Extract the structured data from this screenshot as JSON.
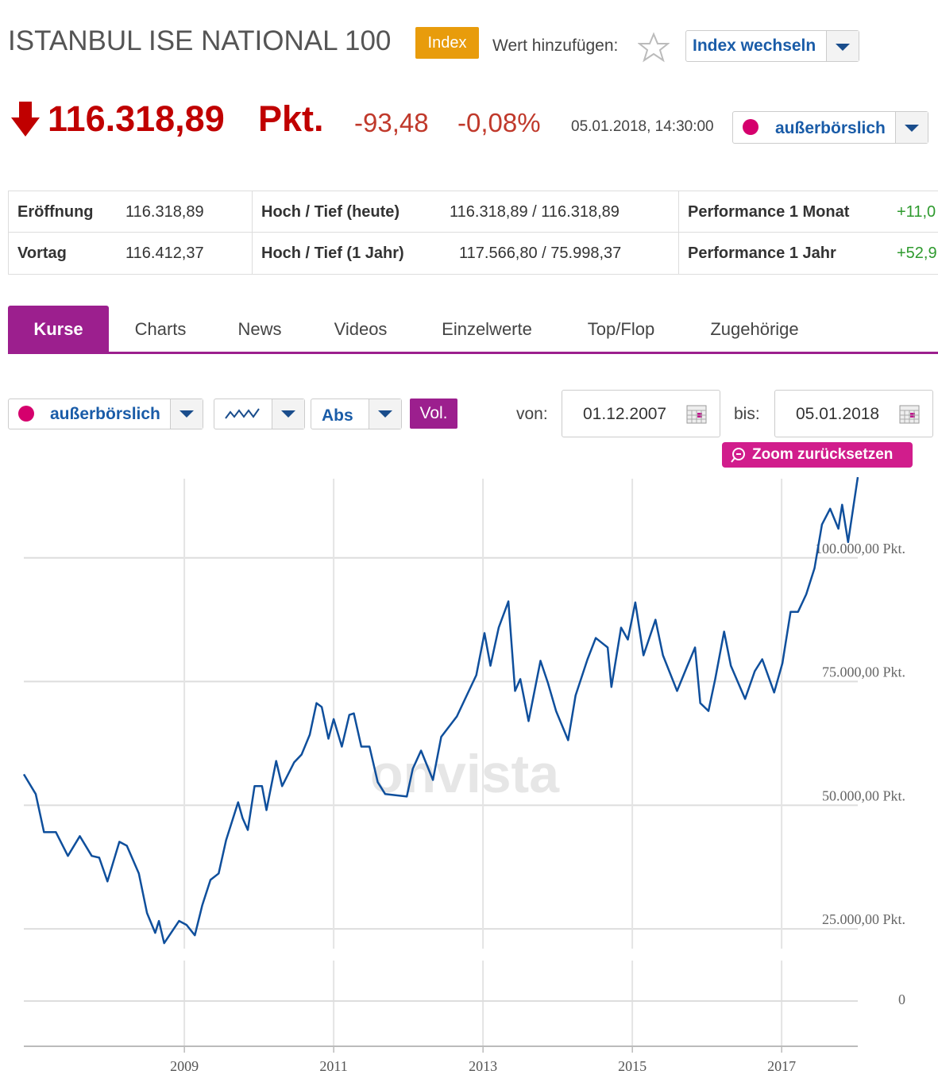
{
  "header": {
    "title": "ISTANBUL ISE NATIONAL 100",
    "badge": "Index",
    "add_label": "Wert hinzufügen:",
    "switch_button": "Index wechseln"
  },
  "quote": {
    "price": "116.318,89",
    "unit": "Pkt.",
    "change": "-93,48",
    "change_pct": "-0,08%",
    "timestamp": "05.01.2018, 14:30:00",
    "exchange": "außerbörslich"
  },
  "stats": {
    "rows": [
      [
        "Eröffnung",
        "116.318,89",
        "Hoch / Tief (heute)",
        "116.318,89 / 116.318,89",
        "Performance 1 Monat",
        "+11,0"
      ],
      [
        "Vortag",
        "116.412,37",
        "Hoch / Tief (1 Jahr)",
        "117.566,80 / 75.998,37",
        "Performance 1 Jahr",
        "+52,9"
      ]
    ]
  },
  "tabs": [
    "Kurse",
    "Charts",
    "News",
    "Videos",
    "Einzelwerte",
    "Top/Flop",
    "Zugehörige"
  ],
  "controls": {
    "exchange": "außerbörslich",
    "mode": "Abs",
    "volume": "Vol.",
    "from_label": "von:",
    "from": "01.12.2007",
    "to_label": "bis:",
    "to": "05.01.2018",
    "zoom_reset": "Zoom zurücksetzen"
  },
  "chart_data": {
    "type": "line",
    "watermark": "onvista",
    "color": "#0f4f9c",
    "grid": true,
    "x": [
      2006.85,
      2007.01,
      2007.12,
      2007.28,
      2007.44,
      2007.6,
      2007.76,
      2007.86,
      2007.97,
      2008.13,
      2008.23,
      2008.39,
      2008.5,
      2008.61,
      2008.66,
      2008.73,
      2008.93,
      2009.03,
      2009.14,
      2009.24,
      2009.35,
      2009.46,
      2009.56,
      2009.72,
      2009.78,
      2009.85,
      2009.94,
      2010.04,
      2010.1,
      2010.23,
      2010.31,
      2010.47,
      2010.57,
      2010.68,
      2010.77,
      2010.84,
      2010.93,
      2011.0,
      2011.11,
      2011.21,
      2011.27,
      2011.37,
      2011.48,
      2011.59,
      2011.69,
      2011.98,
      2012.06,
      2012.17,
      2012.33,
      2012.44,
      2012.65,
      2012.76,
      2012.91,
      2013.02,
      2013.1,
      2013.21,
      2013.34,
      2013.43,
      2013.5,
      2013.61,
      2013.77,
      2013.87,
      2013.98,
      2014.14,
      2014.24,
      2014.4,
      2014.51,
      2014.67,
      2014.72,
      2014.85,
      2014.94,
      2015.04,
      2015.15,
      2015.31,
      2015.41,
      2015.6,
      2015.73,
      2015.84,
      2015.91,
      2016.02,
      2016.11,
      2016.23,
      2016.32,
      2016.51,
      2016.64,
      2016.74,
      2016.9,
      2017.01,
      2017.12,
      2017.22,
      2017.33,
      2017.44,
      2017.54,
      2017.65,
      2017.76,
      2017.81,
      2017.89,
      2018.02
    ],
    "values": [
      56250,
      52250,
      44550,
      44550,
      39750,
      43750,
      39750,
      39400,
      34600,
      42600,
      41800,
      36200,
      28200,
      24200,
      26600,
      22100,
      26600,
      25800,
      23700,
      29800,
      34900,
      36200,
      42950,
      50600,
      47400,
      45000,
      53850,
      53850,
      49000,
      58950,
      53850,
      58650,
      60250,
      64250,
      70650,
      69850,
      63450,
      67400,
      61850,
      68250,
      68550,
      61850,
      61850,
      54650,
      52250,
      51750,
      57350,
      61050,
      55100,
      63800,
      67950,
      71500,
      76300,
      84800,
      78200,
      85900,
      91200,
      73100,
      75500,
      67000,
      79200,
      74700,
      69000,
      63150,
      72200,
      79500,
      83800,
      81900,
      73900,
      85900,
      83500,
      91000,
      80300,
      87500,
      80300,
      73100,
      77900,
      81900,
      70650,
      69050,
      75500,
      85100,
      78200,
      71500,
      77100,
      79500,
      72800,
      78700,
      89100,
      89100,
      92650,
      97900,
      106750,
      109950,
      105900,
      110750,
      103200,
      116319
    ],
    "xlim": [
      2006.85,
      2018.02
    ],
    "xticks": [
      2009,
      2011,
      2013,
      2015,
      2017
    ],
    "ylim": [
      21000,
      116500
    ],
    "yticks": [
      {
        "value": 25000,
        "label": "25.000,00 Pkt."
      },
      {
        "value": 50000,
        "label": "50.000,00 Pkt."
      },
      {
        "value": 75000,
        "label": "75.000,00 Pkt."
      },
      {
        "value": 100000,
        "label": "100.000,00 Pkt."
      }
    ],
    "volume_yticks": [
      0
    ]
  }
}
